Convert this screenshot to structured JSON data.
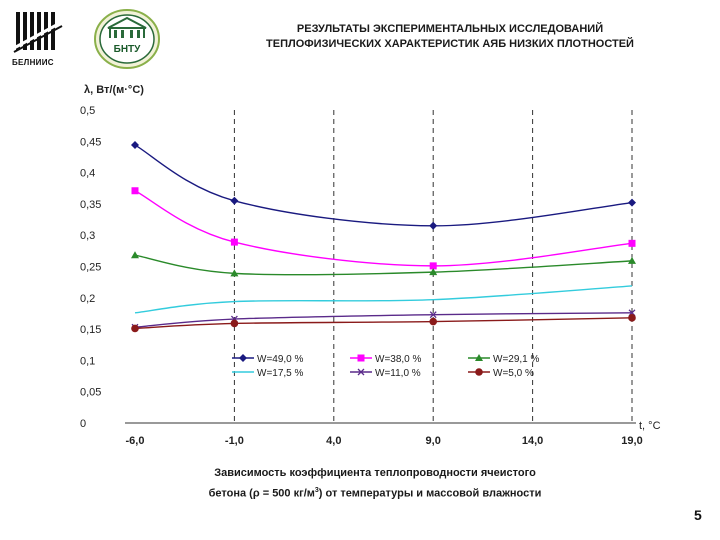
{
  "header": {
    "logo_left_caption": "БЕЛНИИС",
    "logo_right_caption": "БНТУ",
    "title_line1": "РЕЗУЛЬТАТЫ ЭКСПЕРИМЕНТАЛЬНЫХ ИССЛЕДОВАНИЙ",
    "title_line2": "ТЕПЛОФИЗИЧЕСКИХ ХАРАКТЕРИСТИК АЯБ НИЗКИХ ПЛОТНОСТЕЙ"
  },
  "chart_data": {
    "type": "line",
    "title": "",
    "ylabel": "λ, Вт/(м·°С)",
    "xlabel": "t, °С",
    "xlim": [
      -6.0,
      19.0
    ],
    "ylim": [
      0,
      0.5
    ],
    "x_ticks": [
      -6.0,
      -1.0,
      4.0,
      9.0,
      14.0,
      19.0
    ],
    "x_tick_labels": [
      "-6,0",
      "-1,0",
      "4,0",
      "9,0",
      "14,0",
      "19,0"
    ],
    "y_ticks": [
      0,
      0.05,
      0.1,
      0.15,
      0.2,
      0.25,
      0.3,
      0.35,
      0.4,
      0.45,
      0.5
    ],
    "y_tick_labels": [
      "0",
      "0,05",
      "0,1",
      "0,15",
      "0,2",
      "0,25",
      "0,3",
      "0,35",
      "0,4",
      "0,45",
      "0,5"
    ],
    "grid": "vertical dashed",
    "legend_position": "bottom-inside",
    "x": [
      -6.0,
      -1.0,
      9.0,
      19.0
    ],
    "series": [
      {
        "name": "W=49,0 %",
        "color": "#1a1a80",
        "marker": "diamond",
        "values": [
          0.444,
          0.355,
          0.315,
          0.352
        ]
      },
      {
        "name": "W=38,0 %",
        "color": "#ff00ff",
        "marker": "square",
        "values": [
          0.371,
          0.289,
          0.251,
          0.287
        ]
      },
      {
        "name": "W=29,1 %",
        "color": "#2a8a2a",
        "marker": "triangle",
        "values": [
          0.268,
          0.239,
          0.241,
          0.259
        ]
      },
      {
        "name": "W=17,5 %",
        "color": "#33ccdd",
        "marker": "none",
        "values": [
          0.176,
          0.194,
          0.197,
          0.219
        ]
      },
      {
        "name": "W=11,0 %",
        "color": "#5a2a8a",
        "marker": "x",
        "values": [
          0.153,
          0.166,
          0.173,
          0.176
        ]
      },
      {
        "name": "W=5,0 %",
        "color": "#8a1a1a",
        "marker": "circle",
        "values": [
          0.151,
          0.159,
          0.162,
          0.168
        ]
      }
    ]
  },
  "caption": {
    "line1": "Зависимость коэффициента теплопроводности ячеистого",
    "line2_a": "бетона (ρ = 500 кг/м",
    "line2_sup": "3",
    "line2_b": ") от температуры и массовой влажности"
  },
  "page_number": "5"
}
